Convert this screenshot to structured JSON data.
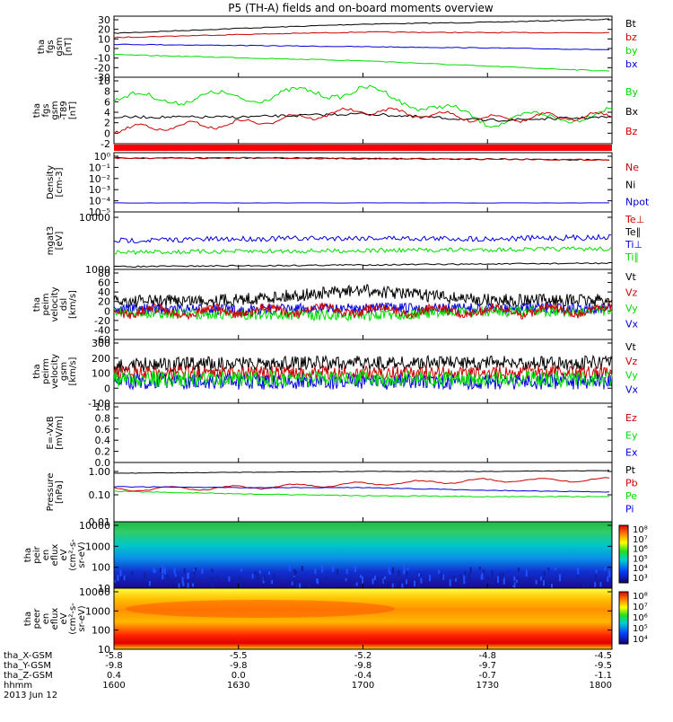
{
  "title": "P5 (TH-A) fields and on-board moments overview",
  "colors": {
    "black": "#000000",
    "red": "#cc0000",
    "green": "#00dd00",
    "blue": "#0000dd"
  },
  "x_time_labels": [
    "1600",
    "1630",
    "1700",
    "1730",
    "1800"
  ],
  "footer": {
    "rows": [
      {
        "label": "tha_X-GSM",
        "values": [
          "-5.8",
          "-5.5",
          "-5.2",
          "-4.8",
          "-4.5"
        ]
      },
      {
        "label": "tha_Y-GSM",
        "values": [
          "-9.8",
          "-9.8",
          "-9.8",
          "-9.7",
          "-9.5"
        ]
      },
      {
        "label": "tha_Z-GSM",
        "values": [
          "0.4",
          "0.0",
          "-0.4",
          "-0.7",
          "-1.1"
        ]
      },
      {
        "label": "hhmm",
        "values": [
          "1600",
          "1630",
          "1700",
          "1730",
          "1800"
        ]
      }
    ],
    "date": "2013 Jun 12"
  },
  "panels": [
    {
      "id": "fgs",
      "ylabel": [
        "tha",
        "fgs",
        "gsm",
        "[nT]"
      ],
      "ticks": [
        "30",
        "20",
        "10",
        "0",
        "-10",
        "-20",
        "-30"
      ],
      "legend": [
        {
          "text": "Bt",
          "color": "black"
        },
        {
          "text": "bz",
          "color": "red"
        },
        {
          "text": "by",
          "color": "green"
        },
        {
          "text": "bx",
          "color": "blue"
        }
      ]
    },
    {
      "id": "fgm",
      "ylabel": [
        "tha",
        "fgs",
        "gsm",
        "-T89",
        "[nT]"
      ],
      "ticks": [
        "10",
        "8",
        "6",
        "4",
        "2",
        "0",
        "-2"
      ],
      "legend": [
        {
          "text": "By",
          "color": "green"
        },
        {
          "text": "Bx",
          "color": "black"
        },
        {
          "text": "Bz",
          "color": "red"
        }
      ]
    },
    {
      "id": "density",
      "ylabel": [
        "Density",
        "[cm-3]"
      ],
      "ticks": [
        "10⁰",
        "10⁻¹",
        "10⁻²",
        "10⁻³",
        "10⁻⁴",
        "10⁻⁵"
      ],
      "legend": [
        {
          "text": "Ne",
          "color": "red"
        },
        {
          "text": "Ni",
          "color": "black"
        },
        {
          "text": "Npot",
          "color": "blue"
        }
      ]
    },
    {
      "id": "temp",
      "ylabel": [
        "mgat3",
        "[eV]"
      ],
      "ticks": [
        "10000",
        "1000"
      ],
      "legend": [
        {
          "text": "Te⊥",
          "color": "red"
        },
        {
          "text": "Te∥",
          "color": "black"
        },
        {
          "text": "Ti⊥",
          "color": "blue"
        },
        {
          "text": "Ti∥",
          "color": "green"
        }
      ]
    },
    {
      "id": "peimvel",
      "ylabel": [
        "tha",
        "peim",
        "velocity",
        "dsl",
        "[km/s]"
      ],
      "ticks": [
        "80",
        "60",
        "40",
        "20",
        "0",
        "-20",
        "-40",
        "-60"
      ],
      "legend": [
        {
          "text": "Vt",
          "color": "black"
        },
        {
          "text": "Vz",
          "color": "red"
        },
        {
          "text": "Vy",
          "color": "green"
        },
        {
          "text": "Vx",
          "color": "blue"
        }
      ]
    },
    {
      "id": "peirmvel",
      "ylabel": [
        "tha",
        "peirm",
        "velocity",
        "gsm",
        "[km/s]"
      ],
      "ticks": [
        "300",
        "200",
        "100",
        "0",
        "-100"
      ],
      "legend": [
        {
          "text": "Vt",
          "color": "black"
        },
        {
          "text": "Vz",
          "color": "red"
        },
        {
          "text": "Vy",
          "color": "green"
        },
        {
          "text": "Vx",
          "color": "blue"
        }
      ]
    },
    {
      "id": "efield",
      "ylabel": [
        "E=-VxB",
        "[mV/m]"
      ],
      "ticks": [
        "1.0",
        "0.8",
        "0.6",
        "0.4",
        "0.2",
        "0.0"
      ],
      "legend": [
        {
          "text": "Ez",
          "color": "red"
        },
        {
          "text": "Ey",
          "color": "green"
        },
        {
          "text": "Ex",
          "color": "blue"
        }
      ]
    },
    {
      "id": "pressure",
      "ylabel": [
        "Pressure",
        "[nPa]"
      ],
      "ticks": [
        "1.00",
        "0.10",
        "0.01"
      ],
      "legend": [
        {
          "text": "Pt",
          "color": "black"
        },
        {
          "text": "Pb",
          "color": "red"
        },
        {
          "text": "Pe",
          "color": "green"
        },
        {
          "text": "Pi",
          "color": "blue"
        }
      ]
    },
    {
      "id": "peir",
      "ylabel": [
        "tha",
        "peir",
        "en",
        "eflux",
        "eV",
        "(cm²-s-",
        "sr-eV)"
      ],
      "ticks": [
        "10000",
        "1000",
        "100",
        "10"
      ],
      "colorbar": [
        "10⁸",
        "10⁷",
        "10⁶",
        "10⁵",
        "10⁴",
        "10³"
      ]
    },
    {
      "id": "peer",
      "ylabel": [
        "tha",
        "peer",
        "en",
        "eflux",
        "eV",
        "(cm²-s-",
        "sr-eV)"
      ],
      "ticks": [
        "10000",
        "1000",
        "100",
        "10"
      ],
      "colorbar": [
        "10⁸",
        "10⁷",
        "10⁶",
        "10⁵",
        "10⁴"
      ]
    }
  ],
  "chart_data": [
    {
      "type": "line",
      "title": "P5 (TH-A) fields and on-board moments overview",
      "ylabel": "tha fgs gsm [nT]",
      "ylim": [
        -30,
        30
      ],
      "x": [
        1600,
        1630,
        1700,
        1730,
        1800
      ],
      "series": [
        {
          "name": "Bt",
          "values": [
            17,
            20,
            24,
            27,
            30
          ]
        },
        {
          "name": "bz",
          "values": [
            13,
            15,
            17,
            16,
            16
          ]
        },
        {
          "name": "by",
          "values": [
            -8,
            -11,
            -14,
            -19,
            -23
          ]
        },
        {
          "name": "bx",
          "values": [
            4,
            3,
            1,
            0,
            -1
          ]
        }
      ]
    },
    {
      "type": "line",
      "ylabel": "tha fgs gsm -T89 [nT]",
      "ylim": [
        -2,
        10
      ],
      "x": [
        1600,
        1630,
        1700,
        1730,
        1800
      ],
      "series": [
        {
          "name": "By",
          "values": [
            6,
            7,
            8,
            3,
            4
          ]
        },
        {
          "name": "Bx",
          "values": [
            2,
            3,
            3,
            2,
            3
          ]
        },
        {
          "name": "Bz",
          "values": [
            1,
            1,
            4,
            2,
            3
          ]
        }
      ]
    },
    {
      "type": "line",
      "ylabel": "Density [cm-3]",
      "log": true,
      "ylim": [
        1e-05,
        1
      ],
      "x": [
        1600,
        1630,
        1700,
        1730,
        1800
      ],
      "series": [
        {
          "name": "Ne",
          "values": [
            0.5,
            0.5,
            0.45,
            0.4,
            0.35
          ]
        },
        {
          "name": "Npot",
          "values": [
            0.0001,
            0.0001,
            0.0001,
            0.0001,
            0.0001
          ]
        }
      ]
    },
    {
      "type": "line",
      "ylabel": "mgat3 [eV]",
      "log": true,
      "x": [
        1600,
        1630,
        1700,
        1730,
        1800
      ],
      "series": [
        {
          "name": "Ti⊥",
          "values": [
            5000,
            5200,
            5400,
            5200,
            5000
          ]
        },
        {
          "name": "Ti∥",
          "values": [
            2800,
            3000,
            3200,
            3100,
            3000
          ]
        },
        {
          "name": "Te∥",
          "values": [
            1400,
            1500,
            1600,
            1700,
            1800
          ]
        }
      ]
    },
    {
      "type": "line",
      "ylabel": "tha peim velocity dsl [km/s]",
      "ylim": [
        -60,
        80
      ],
      "x": [
        1600,
        1630,
        1700,
        1730,
        1800
      ],
      "series": [
        {
          "name": "Vt",
          "values": [
            20,
            22,
            45,
            20,
            20
          ]
        },
        {
          "name": "Vz",
          "values": [
            -5,
            -8,
            0,
            -5,
            -3
          ]
        },
        {
          "name": "Vy",
          "values": [
            -15,
            -12,
            -20,
            -10,
            -5
          ]
        },
        {
          "name": "Vx",
          "values": [
            5,
            0,
            0,
            5,
            10
          ]
        }
      ]
    },
    {
      "type": "line",
      "ylabel": "tha peirm velocity gsm [km/s]",
      "ylim": [
        -100,
        300
      ],
      "x": [
        1600,
        1630,
        1700,
        1730,
        1800
      ],
      "series": [
        {
          "name": "Vt",
          "values": [
            130,
            140,
            140,
            140,
            140
          ]
        },
        {
          "name": "Vz",
          "values": [
            60,
            60,
            60,
            60,
            60
          ]
        },
        {
          "name": "Vy",
          "values": [
            0,
            0,
            0,
            0,
            0
          ]
        },
        {
          "name": "Vx",
          "values": [
            -30,
            -30,
            -30,
            -30,
            -30
          ]
        }
      ]
    },
    {
      "type": "line",
      "ylabel": "E=-VxB [mV/m]",
      "ylim": [
        0,
        1
      ],
      "x": [
        1600,
        1630,
        1700,
        1730,
        1800
      ],
      "series": []
    },
    {
      "type": "line",
      "ylabel": "Pressure [nPa]",
      "log": true,
      "ylim": [
        0.01,
        1
      ],
      "x": [
        1600,
        1630,
        1700,
        1730,
        1800
      ],
      "series": [
        {
          "name": "Pt",
          "values": [
            0.2,
            0.22,
            0.25,
            0.45,
            0.6
          ]
        },
        {
          "name": "Pb",
          "values": [
            0.11,
            0.13,
            0.16,
            0.3,
            0.35
          ]
        },
        {
          "name": "Pe",
          "values": [
            0.1,
            0.09,
            0.08,
            0.08,
            0.08
          ]
        },
        {
          "name": "Pi",
          "values": [
            0.17,
            0.17,
            0.17,
            0.15,
            0.13
          ]
        }
      ]
    },
    {
      "type": "heatmap",
      "ylabel": "tha peir en eflux eV (cm2-s-sr-eV)",
      "log": true,
      "ylim": [
        10,
        10000
      ],
      "x": [
        1600,
        1800
      ]
    },
    {
      "type": "heatmap",
      "ylabel": "tha peer en eflux eV (cm2-s-sr-eV)",
      "log": true,
      "ylim": [
        10,
        10000
      ],
      "x": [
        1600,
        1800
      ]
    }
  ]
}
